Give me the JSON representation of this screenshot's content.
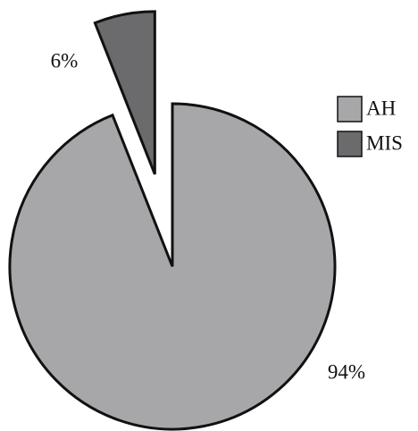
{
  "chart_data": {
    "type": "pie",
    "categories": [
      "AH",
      "MIS"
    ],
    "values": [
      94,
      6
    ],
    "value_labels": [
      "94%",
      "6%"
    ],
    "colors": [
      "#a7a7a9",
      "#6b6b6d"
    ]
  }
}
